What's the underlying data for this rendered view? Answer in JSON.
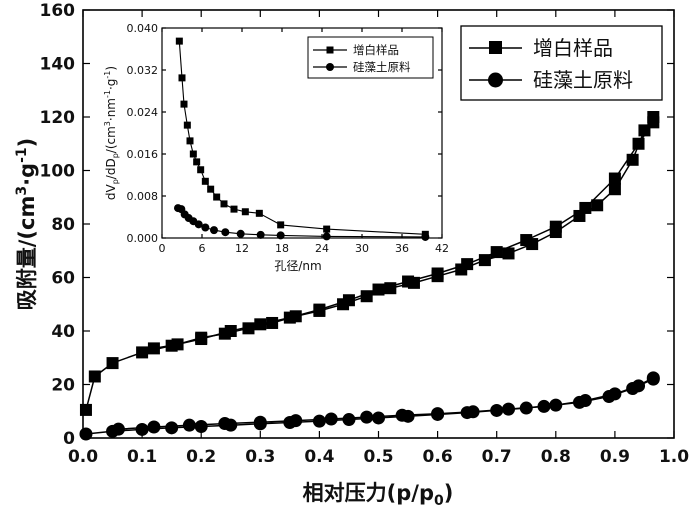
{
  "chart_data": [
    {
      "type": "line",
      "xlabel": "相对压力(p/p0)",
      "ylabel": "吸附量/(cm3·g-1)",
      "xlim": [
        0.0,
        1.0
      ],
      "ylim": [
        0,
        160
      ],
      "xticks": [
        "0.0",
        "0.1",
        "0.2",
        "0.3",
        "0.4",
        "0.5",
        "0.6",
        "0.7",
        "0.8",
        "0.9",
        "1.0"
      ],
      "yticks": [
        "0",
        "20",
        "40",
        "60",
        "80",
        "100",
        "120",
        "140",
        "160"
      ],
      "legend_position": "top-right",
      "series": [
        {
          "name": "增白样品",
          "marker": "square",
          "adsorption": [
            [
              0.005,
              10.5
            ],
            [
              0.02,
              23
            ],
            [
              0.05,
              28
            ],
            [
              0.1,
              32
            ],
            [
              0.15,
              34.5
            ],
            [
              0.2,
              37
            ],
            [
              0.25,
              40
            ],
            [
              0.3,
              42.5
            ],
            [
              0.35,
              45
            ],
            [
              0.4,
              48
            ],
            [
              0.45,
              51.5
            ],
            [
              0.5,
              55.5
            ],
            [
              0.55,
              58.5
            ],
            [
              0.6,
              61.5
            ],
            [
              0.65,
              65
            ],
            [
              0.7,
              69.5
            ],
            [
              0.75,
              74
            ],
            [
              0.8,
              79
            ],
            [
              0.85,
              86
            ],
            [
              0.9,
              97
            ],
            [
              0.94,
              110
            ],
            [
              0.965,
              118
            ]
          ],
          "desorption": [
            [
              0.965,
              120
            ],
            [
              0.95,
              115
            ],
            [
              0.93,
              104
            ],
            [
              0.9,
              93
            ],
            [
              0.87,
              87
            ],
            [
              0.84,
              83
            ],
            [
              0.8,
              77
            ],
            [
              0.76,
              72.5
            ],
            [
              0.72,
              69
            ],
            [
              0.68,
              66.5
            ],
            [
              0.64,
              63
            ],
            [
              0.6,
              60.5
            ],
            [
              0.56,
              58
            ],
            [
              0.52,
              56
            ],
            [
              0.48,
              53
            ],
            [
              0.44,
              50
            ],
            [
              0.4,
              47.5
            ],
            [
              0.36,
              45.5
            ],
            [
              0.32,
              43
            ],
            [
              0.28,
              41
            ],
            [
              0.24,
              39
            ],
            [
              0.2,
              37.5
            ],
            [
              0.16,
              35
            ],
            [
              0.12,
              33.5
            ]
          ]
        },
        {
          "name": "硅藻土原料",
          "marker": "circle",
          "adsorption": [
            [
              0.005,
              1.5
            ],
            [
              0.05,
              2.5
            ],
            [
              0.1,
              3.2
            ],
            [
              0.15,
              3.8
            ],
            [
              0.2,
              4.3
            ],
            [
              0.25,
              4.8
            ],
            [
              0.3,
              5.3
            ],
            [
              0.35,
              5.8
            ],
            [
              0.4,
              6.3
            ],
            [
              0.45,
              6.9
            ],
            [
              0.5,
              7.5
            ],
            [
              0.55,
              8.1
            ],
            [
              0.6,
              8.8
            ],
            [
              0.65,
              9.5
            ],
            [
              0.7,
              10.3
            ],
            [
              0.75,
              11.2
            ],
            [
              0.8,
              12.3
            ],
            [
              0.85,
              14
            ],
            [
              0.9,
              16.5
            ],
            [
              0.94,
              19.5
            ],
            [
              0.965,
              22
            ]
          ],
          "desorption": [
            [
              0.965,
              22.5
            ],
            [
              0.93,
              18.5
            ],
            [
              0.89,
              15.5
            ],
            [
              0.84,
              13.3
            ],
            [
              0.78,
              11.8
            ],
            [
              0.72,
              10.8
            ],
            [
              0.66,
              9.8
            ],
            [
              0.6,
              9.1
            ],
            [
              0.54,
              8.5
            ],
            [
              0.48,
              7.8
            ],
            [
              0.42,
              7.1
            ],
            [
              0.36,
              6.5
            ],
            [
              0.3,
              5.9
            ],
            [
              0.24,
              5.4
            ],
            [
              0.18,
              4.8
            ],
            [
              0.12,
              4.1
            ],
            [
              0.06,
              3.3
            ]
          ]
        }
      ]
    },
    {
      "type": "line",
      "xlabel": "孔径/nm",
      "ylabel": "dVp/dDp/(cm3·nm-1·g-1)",
      "xlim": [
        0,
        42
      ],
      "ylim": [
        0,
        0.04
      ],
      "xticks": [
        "0",
        "6",
        "12",
        "18",
        "24",
        "30",
        "36",
        "42"
      ],
      "yticks": [
        "0.000",
        "0.008",
        "0.016",
        "0.024",
        "0.032",
        "0.040"
      ],
      "legend_position": "top-right",
      "series": [
        {
          "name": "增白样品",
          "marker": "square",
          "points": [
            [
              2.6,
              0.0375
            ],
            [
              3.0,
              0.0305
            ],
            [
              3.3,
              0.0255
            ],
            [
              3.8,
              0.0215
            ],
            [
              4.2,
              0.0185
            ],
            [
              4.7,
              0.016
            ],
            [
              5.2,
              0.0145
            ],
            [
              5.8,
              0.013
            ],
            [
              6.5,
              0.0108
            ],
            [
              7.3,
              0.0093
            ],
            [
              8.2,
              0.0078
            ],
            [
              9.3,
              0.0065
            ],
            [
              10.8,
              0.0055
            ],
            [
              12.5,
              0.005
            ],
            [
              14.6,
              0.0047
            ],
            [
              17.8,
              0.0025
            ],
            [
              24.7,
              0.0017
            ],
            [
              39.5,
              0.0007
            ]
          ]
        },
        {
          "name": "硅藻土原料",
          "marker": "circle",
          "points": [
            [
              2.4,
              0.0057
            ],
            [
              2.9,
              0.0055
            ],
            [
              3.4,
              0.0045
            ],
            [
              4.0,
              0.0038
            ],
            [
              4.7,
              0.0032
            ],
            [
              5.5,
              0.0026
            ],
            [
              6.5,
              0.002
            ],
            [
              7.8,
              0.0015
            ],
            [
              9.5,
              0.0011
            ],
            [
              11.8,
              0.0008
            ],
            [
              14.8,
              0.0006
            ],
            [
              17.8,
              0.0005
            ],
            [
              24.7,
              0.0003
            ],
            [
              39.5,
              0.0002
            ]
          ]
        }
      ]
    }
  ]
}
